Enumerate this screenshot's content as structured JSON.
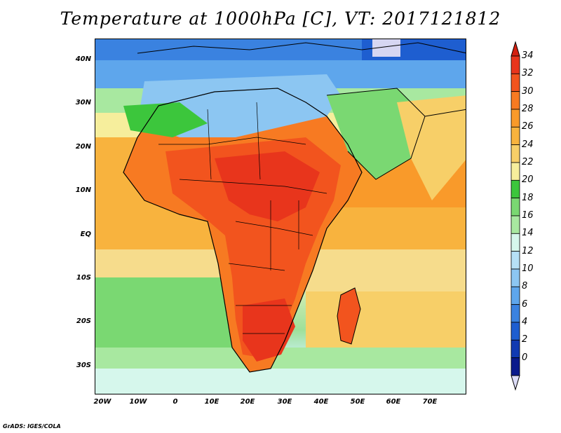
{
  "title": "Temperature at 1000hPa [C], VT: 2017121812",
  "y_labels": [
    "40N",
    "30N",
    "20N",
    "10N",
    "EQ",
    "10S",
    "20S",
    "30S"
  ],
  "x_labels": [
    "20W",
    "10W",
    "0",
    "10E",
    "20E",
    "30E",
    "40E",
    "50E",
    "60E",
    "70E"
  ],
  "colorbar": {
    "labels": [
      "34",
      "32",
      "30",
      "28",
      "26",
      "24",
      "22",
      "20",
      "18",
      "16",
      "14",
      "12",
      "10",
      "8",
      "6",
      "4",
      "2",
      "0"
    ],
    "colors": [
      "#e8351c",
      "#f2541e",
      "#f77a22",
      "#f99a2a",
      "#f8b33e",
      "#f7cf68",
      "#f6ee9c",
      "#3cc63c",
      "#7ad872",
      "#a8e8a0",
      "#d6f7ec",
      "#b6e0f6",
      "#8cc6f2",
      "#5ea6ec",
      "#3a82e0",
      "#1e5ed0",
      "#113ab2",
      "#0a1a8c"
    ]
  },
  "credit": "GrADS: IGES/COLA"
}
